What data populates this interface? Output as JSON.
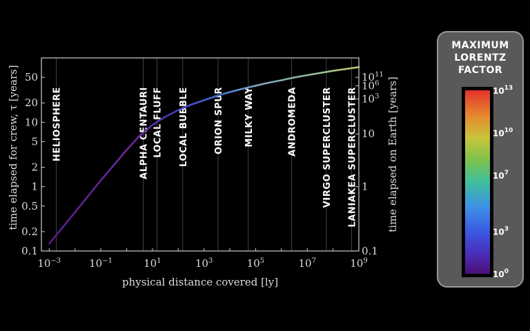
{
  "chart_data": {
    "type": "line",
    "xlabel": "physical distance covered [ly]",
    "ylabel": "time elapsed for crew, τ [years]",
    "y2label": "time elapsed on Earth [years]",
    "x_scale": "log",
    "y_scale": "log",
    "xlim": [
      0.0005,
      1000000000
    ],
    "ylim": [
      0.1,
      100
    ],
    "x_ticks": [
      {
        "value": 0.001,
        "base": "10",
        "exp": "−3"
      },
      {
        "value": 0.1,
        "base": "10",
        "exp": "−1"
      },
      {
        "value": 10,
        "base": "10",
        "exp": "1"
      },
      {
        "value": 1000,
        "base": "10",
        "exp": "3"
      },
      {
        "value": 100000,
        "base": "10",
        "exp": "5"
      },
      {
        "value": 10000000,
        "base": "10",
        "exp": "7"
      },
      {
        "value": 1000000000,
        "base": "10",
        "exp": "9"
      }
    ],
    "y_ticks": [
      {
        "value": 0.1,
        "label": "0.1"
      },
      {
        "value": 0.2,
        "label": "0.2"
      },
      {
        "value": 0.5,
        "label": "0.5"
      },
      {
        "value": 1,
        "label": "1"
      },
      {
        "value": 2,
        "label": "2"
      },
      {
        "value": 5,
        "label": "5"
      },
      {
        "value": 10,
        "label": "10"
      },
      {
        "value": 20,
        "label": "20"
      },
      {
        "value": 50,
        "label": "50"
      }
    ],
    "y2_ticks": [
      {
        "tau": 0.1,
        "label": "0.1",
        "base": "",
        "exp": ""
      },
      {
        "tau": 1,
        "label": "1",
        "base": "",
        "exp": ""
      },
      {
        "tau": 6.6,
        "label": "10",
        "base": "",
        "exp": ""
      },
      {
        "tau": 23,
        "label": "",
        "base": "10",
        "exp": "3"
      },
      {
        "tau": 37,
        "label": "",
        "base": "10",
        "exp": "6"
      },
      {
        "tau": 50,
        "label": "",
        "base": "10",
        "exp": "11"
      }
    ],
    "series": [
      {
        "x": [
          0.001,
          0.01,
          0.1,
          1,
          3,
          10,
          30,
          100,
          300,
          1000,
          3000,
          10000,
          30000,
          100000,
          300000,
          1000000,
          3000000,
          10000000,
          100000000,
          1000000000
        ],
        "y": [
          0.13,
          0.4,
          1.25,
          3.7,
          6.0,
          9.1,
          12.0,
          15.5,
          18.7,
          22.0,
          25.5,
          29.5,
          33.0,
          37.0,
          41.0,
          45.0,
          49.5,
          54.0,
          63.0,
          72.0
        ]
      }
    ],
    "landmarks": [
      {
        "name": "HELIOSPHERE",
        "x": 0.0019
      },
      {
        "name": "ALPHA CENTAURI",
        "x": 4.37
      },
      {
        "name": "LOCAL FLUFF",
        "x": 15
      },
      {
        "name": "LOCAL BUBBLE",
        "x": 150
      },
      {
        "name": "ORION SPUR",
        "x": 3500
      },
      {
        "name": "MILKY WAY",
        "x": 52000
      },
      {
        "name": "ANDROMEDA",
        "x": 2500000
      },
      {
        "name": "VIRGO SUPERCLUSTER",
        "x": 55000000
      },
      {
        "name": "LANIAKEA SUPERCLUSTER",
        "x": 520000000
      }
    ],
    "colorbar": {
      "title_lines": [
        "MAXIMUM",
        "LORENTZ",
        "FACTOR"
      ],
      "scale": "log",
      "range_exp": [
        0,
        13
      ],
      "ticks": [
        {
          "exp": 0,
          "base": "10",
          "sup": "0"
        },
        {
          "exp": 3,
          "base": "10",
          "sup": "3"
        },
        {
          "exp": 7,
          "base": "10",
          "sup": "7"
        },
        {
          "exp": 10,
          "base": "10",
          "sup": "10"
        },
        {
          "exp": 13,
          "base": "10",
          "sup": "13"
        }
      ]
    }
  }
}
